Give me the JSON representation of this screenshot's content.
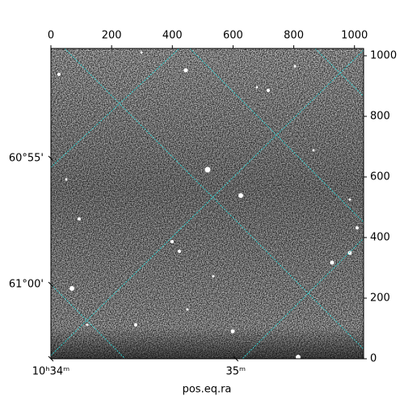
{
  "chart_data": {
    "type": "image",
    "xlabel": "pos.eq.ra",
    "xlim": [
      0,
      1030
    ],
    "ylim": [
      0,
      1024
    ],
    "xticks": [
      0,
      200,
      400,
      600,
      800,
      1000
    ],
    "yticks": [
      0,
      200,
      400,
      600,
      800,
      1000
    ],
    "ra_ticks": [
      {
        "value": 0,
        "label": "10ʰ34ᵐ"
      },
      {
        "value": 609,
        "label": "35ᵐ"
      }
    ],
    "dec_ticks": [
      {
        "value": 661,
        "label": "60°55'"
      },
      {
        "value": 245,
        "label": "61°00'"
      }
    ]
  }
}
